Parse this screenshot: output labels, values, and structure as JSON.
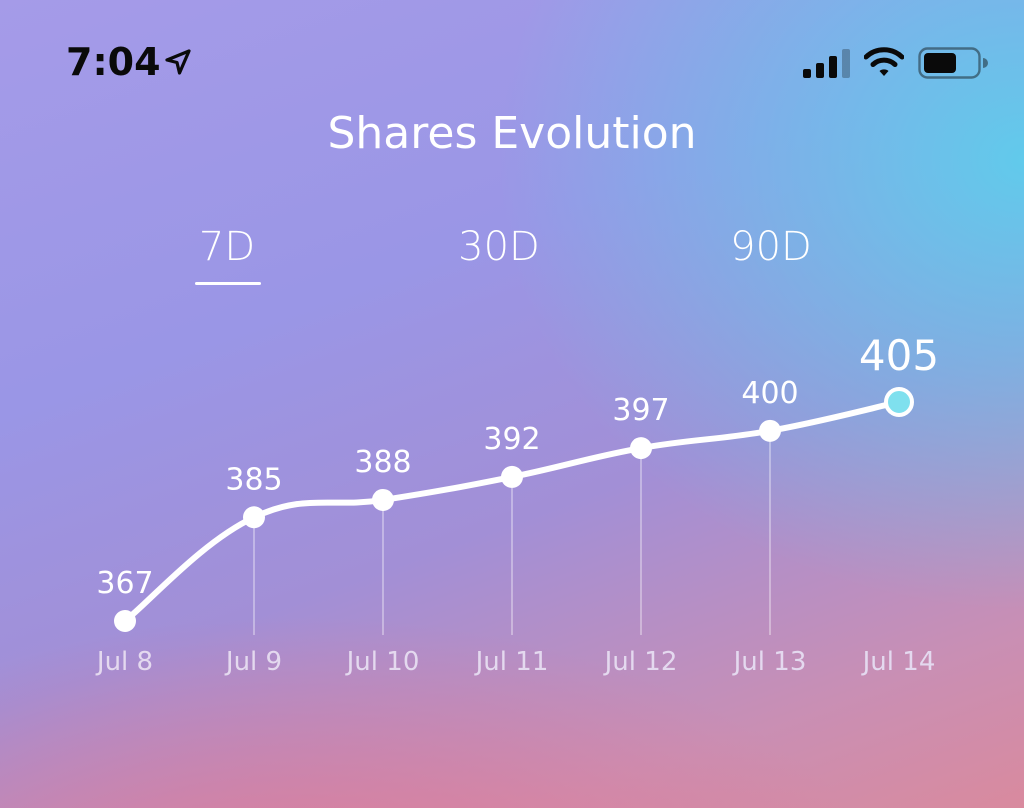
{
  "status_bar": {
    "time": "7:04",
    "icons": [
      "location-arrow-icon",
      "cellular-signal-icon",
      "wifi-icon",
      "battery-icon"
    ]
  },
  "header": {
    "title": "Shares Evolution"
  },
  "tabs": [
    {
      "label": "7D",
      "selected": true
    },
    {
      "label": "30D",
      "selected": false
    },
    {
      "label": "90D",
      "selected": false
    }
  ],
  "colors": {
    "highlight_point": "#7fe0ee",
    "line": "#ffffff",
    "date_label": "#e4d9ef"
  },
  "chart_data": {
    "type": "line",
    "categories": [
      "Jul 8",
      "Jul 9",
      "Jul 10",
      "Jul 11",
      "Jul 12",
      "Jul 13",
      "Jul 14"
    ],
    "values": [
      367,
      385,
      388,
      392,
      397,
      400,
      405
    ],
    "data_labels": [
      "367",
      "385",
      "388",
      "392",
      "397",
      "400",
      "405"
    ],
    "highlighted_index": 6,
    "ylim": [
      367,
      405
    ],
    "grid": false,
    "legend": "none"
  }
}
